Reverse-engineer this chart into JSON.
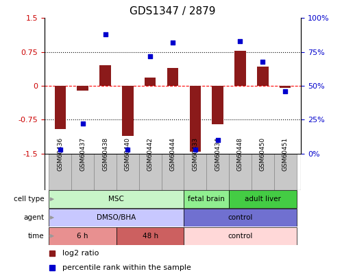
{
  "title": "GDS1347 / 2879",
  "samples": [
    "GSM60436",
    "GSM60437",
    "GSM60438",
    "GSM60440",
    "GSM60442",
    "GSM60444",
    "GSM60433",
    "GSM60434",
    "GSM60448",
    "GSM60450",
    "GSM60451"
  ],
  "log2_ratio": [
    -0.95,
    -0.1,
    0.45,
    -1.1,
    0.18,
    0.4,
    -1.45,
    -0.85,
    0.78,
    0.42,
    -0.05
  ],
  "percentile_rank": [
    3,
    22,
    88,
    3,
    72,
    82,
    3,
    10,
    83,
    68,
    46
  ],
  "bar_color": "#8B1A1A",
  "dot_color": "#0000CD",
  "ylim_left": [
    -1.5,
    1.5
  ],
  "ylim_right": [
    0,
    100
  ],
  "yticks_left": [
    -1.5,
    -0.75,
    0,
    0.75,
    1.5
  ],
  "yticks_right": [
    0,
    25,
    50,
    75,
    100
  ],
  "ytick_labels_left": [
    "-1.5",
    "-0.75",
    "0",
    "0.75",
    "1.5"
  ],
  "ytick_labels_right": [
    "0%",
    "25%",
    "50%",
    "75%",
    "100%"
  ],
  "hlines": [
    -0.75,
    0,
    0.75
  ],
  "hline_styles": [
    "dotted",
    "dashed",
    "dotted"
  ],
  "hline_colors": [
    "black",
    "red",
    "black"
  ],
  "cell_type_groups": [
    {
      "label": "MSC",
      "start": 0,
      "end": 6,
      "color": "#c8f5c8"
    },
    {
      "label": "fetal brain",
      "start": 6,
      "end": 8,
      "color": "#90ee90"
    },
    {
      "label": "adult liver",
      "start": 8,
      "end": 11,
      "color": "#44cc44"
    }
  ],
  "agent_groups": [
    {
      "label": "DMSO/BHA",
      "start": 0,
      "end": 6,
      "color": "#c8c8ff"
    },
    {
      "label": "control",
      "start": 6,
      "end": 11,
      "color": "#7070d0"
    }
  ],
  "time_groups": [
    {
      "label": "6 h",
      "start": 0,
      "end": 3,
      "color": "#e89090"
    },
    {
      "label": "48 h",
      "start": 3,
      "end": 6,
      "color": "#cc6060"
    },
    {
      "label": "control",
      "start": 6,
      "end": 11,
      "color": "#ffd8d8"
    }
  ],
  "row_labels": [
    "cell type",
    "agent",
    "time"
  ],
  "legend_items": [
    {
      "label": "log2 ratio",
      "color": "#8B1A1A"
    },
    {
      "label": "percentile rank within the sample",
      "color": "#0000CD"
    }
  ],
  "bar_width": 0.5,
  "ylabel_left_color": "#cc0000",
  "ylabel_right_color": "#0000cc",
  "sample_box_color": "#c8c8c8",
  "n_samples": 11,
  "xlim_left": -0.7,
  "xlim_right": 10.7
}
